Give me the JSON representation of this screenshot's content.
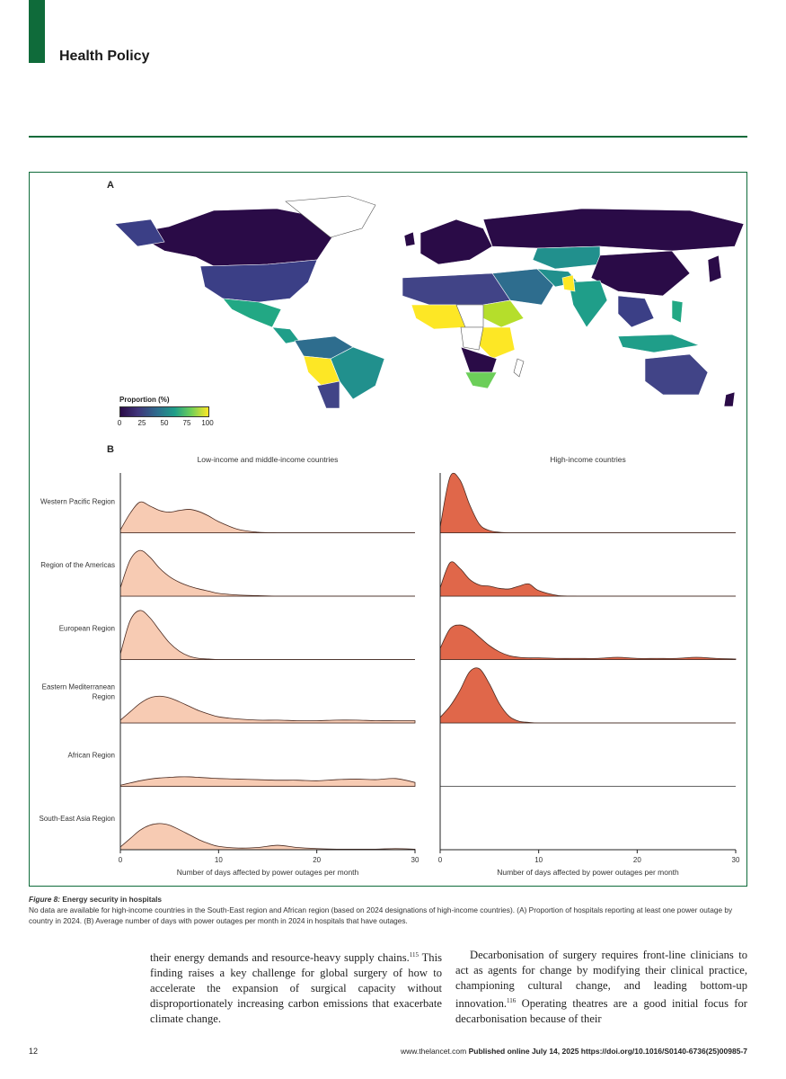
{
  "header": {
    "section_title": "Health Policy"
  },
  "figure": {
    "panel_a_label": "A",
    "panel_b_label": "B",
    "legend": {
      "title": "Proportion (%)",
      "ticks": [
        "0",
        "25",
        "50",
        "75",
        "100"
      ]
    },
    "colors": {
      "lmic_fill": "#f7cbb3",
      "hic_fill": "#e0674a",
      "border": "#0f6b3a"
    },
    "caption_title": "Figure 8: ",
    "caption_subtitle": "Energy security in hospitals",
    "caption_text": "No data are available for high-income countries in the South-East region and African region (based on 2024 designations of high-income countries). (A) Proportion of hospitals reporting at least one power outage by country in 2024. (B) Average number of days with power outages per month in 2024 in hospitals that have outages."
  },
  "chart_data": {
    "type": "area",
    "title": "Energy security in hospitals",
    "panels": [
      "Low-income and middle-income countries",
      "High-income countries"
    ],
    "xlabel": "Number of days affected by power outages per month",
    "xticks": [
      "0",
      "10",
      "20",
      "30"
    ],
    "xlim": [
      0,
      30
    ],
    "regions": [
      "Western Pacific Region",
      "Region of the Americas",
      "European Region",
      "Eastern Mediterranean Region",
      "African Region",
      "South-East Asia Region"
    ],
    "region_labels": [
      [
        "Western Pacific Region"
      ],
      [
        "Region of the Americas"
      ],
      [
        "European Region"
      ],
      [
        "Eastern Mediterranean",
        "Region"
      ],
      [
        "African Region"
      ],
      [
        "South-East Asia Region"
      ]
    ],
    "x": [
      0,
      1,
      2,
      3,
      4,
      5,
      6,
      7,
      8,
      9,
      10,
      12,
      14,
      16,
      18,
      20,
      22,
      24,
      26,
      28,
      30
    ],
    "series": [
      {
        "panel": "Low-income and middle-income countries",
        "region": "Western Pacific Region",
        "density": [
          0.05,
          0.35,
          0.55,
          0.48,
          0.4,
          0.37,
          0.4,
          0.42,
          0.38,
          0.3,
          0.2,
          0.06,
          0.01,
          0,
          0,
          0,
          0,
          0,
          0,
          0,
          0
        ]
      },
      {
        "panel": "Low-income and middle-income countries",
        "region": "Region of the Americas",
        "density": [
          0.15,
          0.65,
          0.82,
          0.7,
          0.5,
          0.35,
          0.25,
          0.18,
          0.13,
          0.09,
          0.05,
          0.02,
          0.01,
          0,
          0,
          0,
          0,
          0,
          0,
          0,
          0
        ]
      },
      {
        "panel": "Low-income and middle-income countries",
        "region": "European Region",
        "density": [
          0.1,
          0.7,
          0.88,
          0.75,
          0.52,
          0.3,
          0.15,
          0.06,
          0.02,
          0.01,
          0,
          0,
          0,
          0,
          0,
          0,
          0,
          0,
          0,
          0,
          0
        ]
      },
      {
        "panel": "Low-income and middle-income countries",
        "region": "Eastern Mediterranean Region",
        "density": [
          0.05,
          0.2,
          0.35,
          0.45,
          0.48,
          0.45,
          0.38,
          0.3,
          0.22,
          0.16,
          0.11,
          0.07,
          0.05,
          0.05,
          0.04,
          0.04,
          0.05,
          0.05,
          0.04,
          0.04,
          0.04
        ]
      },
      {
        "panel": "Low-income and middle-income countries",
        "region": "African Region",
        "density": [
          0.02,
          0.06,
          0.1,
          0.13,
          0.15,
          0.16,
          0.17,
          0.17,
          0.16,
          0.15,
          0.14,
          0.13,
          0.12,
          0.11,
          0.11,
          0.1,
          0.12,
          0.13,
          0.12,
          0.14,
          0.07
        ]
      },
      {
        "panel": "Low-income and middle-income countries",
        "region": "South-East Asia Region",
        "density": [
          0.05,
          0.2,
          0.35,
          0.44,
          0.47,
          0.44,
          0.36,
          0.27,
          0.18,
          0.11,
          0.06,
          0.03,
          0.04,
          0.08,
          0.04,
          0.02,
          0.01,
          0.01,
          0.01,
          0.02,
          0.01
        ]
      },
      {
        "panel": "High-income countries",
        "region": "Western Pacific Region",
        "density": [
          0.1,
          1.0,
          0.95,
          0.5,
          0.15,
          0.04,
          0.01,
          0,
          0,
          0,
          0,
          0,
          0,
          0,
          0,
          0,
          0,
          0,
          0,
          0,
          0
        ]
      },
      {
        "panel": "High-income countries",
        "region": "Region of the Americas",
        "density": [
          0.15,
          0.6,
          0.5,
          0.3,
          0.2,
          0.18,
          0.14,
          0.13,
          0.18,
          0.22,
          0.1,
          0.01,
          0,
          0,
          0,
          0,
          0,
          0,
          0,
          0,
          0
        ]
      },
      {
        "panel": "High-income countries",
        "region": "European Region",
        "density": [
          0.2,
          0.55,
          0.62,
          0.55,
          0.4,
          0.25,
          0.14,
          0.07,
          0.04,
          0.03,
          0.03,
          0.02,
          0.02,
          0.02,
          0.04,
          0.02,
          0.02,
          0.02,
          0.04,
          0.02,
          0.01
        ]
      },
      {
        "panel": "High-income countries",
        "region": "Eastern Mediterranean Region",
        "density": [
          0.1,
          0.3,
          0.58,
          0.92,
          0.97,
          0.7,
          0.35,
          0.12,
          0.03,
          0.01,
          0,
          0,
          0,
          0,
          0,
          0,
          0,
          0,
          0,
          0,
          0
        ]
      }
    ]
  },
  "body": {
    "left_before_sup": "their energy demands and resource-heavy supply chains.",
    "left_sup": "115",
    "left_after_sup": " This finding raises a key challenge for global surgery of how to accelerate the expansion of surgical capacity without disproportionately increasing carbon emissions that exacerbate climate change.",
    "right_before_sup": "Decarbonisation of surgery requires front-line clinicians to act as agents for change by modifying their clinical practice, championing cultural change, and leading bottom-up innovation.",
    "right_sup": "116",
    "right_after_sup": " Operating theatres are a good initial focus for decarbonisation because of their"
  },
  "footer": {
    "page_number": "12",
    "site": "www.thelancet.com",
    "published": "Published online July 14, 2025",
    "doi": "https://doi.org/10.1016/S0140-6736(25)00985-7"
  }
}
